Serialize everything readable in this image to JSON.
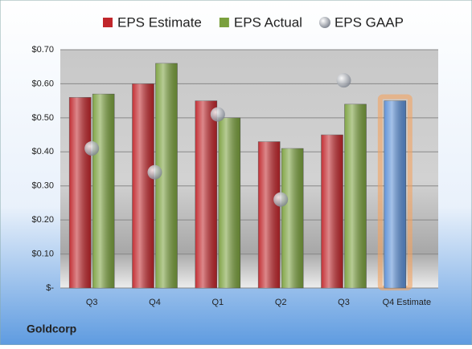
{
  "chart_data": {
    "type": "bar",
    "categories": [
      "Q3",
      "Q4",
      "Q1",
      "Q2",
      "Q3",
      "Q4 Estimate"
    ],
    "series": [
      {
        "name": "EPS Estimate",
        "color": "#c0262b",
        "colors": [
          "#c0262b",
          "#c0262b",
          "#c0262b",
          "#c0262b",
          "#c0262b",
          "#5b8fd6"
        ],
        "values": [
          0.56,
          0.6,
          0.55,
          0.43,
          0.45,
          0.55
        ]
      },
      {
        "name": "EPS Actual",
        "color": "#7aa03d",
        "values": [
          0.57,
          0.66,
          0.5,
          0.41,
          0.54,
          null
        ]
      },
      {
        "name": "EPS GAAP",
        "color": "#b8bcc4",
        "type": "scatter",
        "values": [
          0.41,
          0.34,
          0.51,
          0.26,
          0.61,
          null
        ]
      }
    ],
    "ylim": [
      0,
      0.7
    ],
    "yticks": [
      {
        "value": 0,
        "label": "$-"
      },
      {
        "value": 0.1,
        "label": "$0.10"
      },
      {
        "value": 0.2,
        "label": "$0.20"
      },
      {
        "value": 0.3,
        "label": "$0.30"
      },
      {
        "value": 0.4,
        "label": "$0.40"
      },
      {
        "value": 0.5,
        "label": "$0.50"
      },
      {
        "value": 0.6,
        "label": "$0.60"
      },
      {
        "value": 0.7,
        "label": "$0.70"
      }
    ],
    "grid": true,
    "company": "Goldcorp"
  }
}
